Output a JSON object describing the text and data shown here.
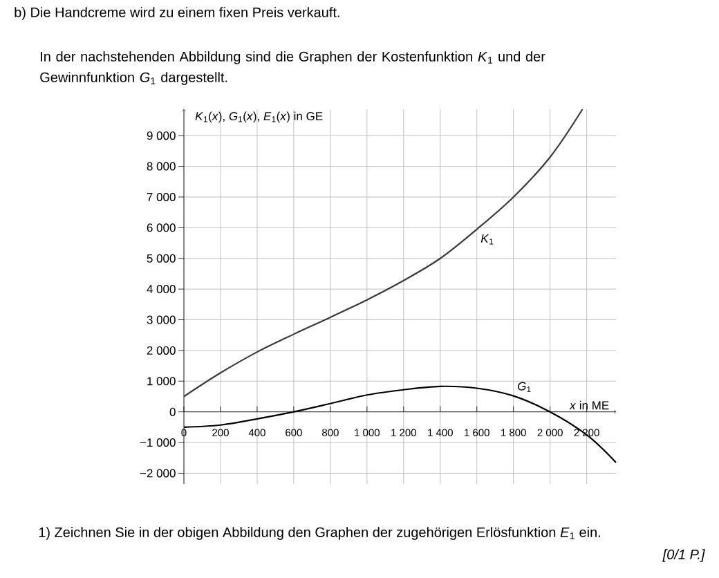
{
  "chart_data": {
    "type": "line",
    "title": "b)  Die Handcreme wird zu einem fixen Preis verkauft.",
    "subtitle": "In der nachstehenden Abbildung sind die Graphen der Kostenfunktion *K*$_{1}$ und der Gewinnfunktion *G*$_{1}$ dargestellt.",
    "xlabel": "*x* in ME",
    "ylabel": "*K*$_{1}$(*x*), *G*$_{1}$(*x*), *E*$_{1}$(*x*) in GE",
    "annotations": [
      "1)  Zeichnen Sie in der obigen Abbildung den Graphen der zugehörigen Erlösfunktion *E*$_{1}$ ein.",
      "*[0/1 P.]*"
    ],
    "series": [
      {
        "name": "*K*$_{1}$",
        "color": "#3a3a3a",
        "x": [
          0,
          200,
          400,
          600,
          800,
          1000,
          1200,
          1400,
          1600,
          1800,
          2000,
          2177
        ],
        "values": [
          500,
          1270,
          1950,
          2530,
          3080,
          3650,
          4280,
          5000,
          5950,
          7000,
          8300,
          9860
        ]
      },
      {
        "name": "*G*$_{1}$",
        "color": "#000000",
        "x": [
          0,
          200,
          400,
          600,
          800,
          1000,
          1200,
          1400,
          1600,
          1800,
          2000,
          2200,
          2360
        ],
        "values": [
          -500,
          -430,
          -230,
          0,
          270,
          550,
          720,
          830,
          770,
          520,
          0,
          -750,
          -1650
        ]
      }
    ],
    "xlim": [
      0,
      2360
    ],
    "ylim": [
      -2350,
      9860
    ],
    "xticks": [
      0,
      200,
      400,
      600,
      800,
      {
        "value": 1000,
        "label": "1 000"
      },
      {
        "value": 1200,
        "label": "1 200"
      },
      {
        "value": 1400,
        "label": "1 400"
      },
      {
        "value": 1600,
        "label": "1 600"
      },
      {
        "value": 1800,
        "label": "1 800"
      },
      {
        "value": 2000,
        "label": "2 000"
      },
      {
        "value": 2200,
        "label": "2 200"
      }
    ],
    "yticks": [
      {
        "value": -2000,
        "label": "−2 000"
      },
      {
        "value": -1000,
        "label": "−1 000"
      },
      0,
      {
        "value": 1000,
        "label": "1 000"
      },
      {
        "value": 2000,
        "label": "2 000"
      },
      {
        "value": 3000,
        "label": "3 000"
      },
      {
        "value": 4000,
        "label": "4 000"
      },
      {
        "value": 5000,
        "label": "5 000"
      },
      {
        "value": 6000,
        "label": "6 000"
      },
      {
        "value": 7000,
        "label": "7 000"
      },
      {
        "value": 8000,
        "label": "8 000"
      },
      {
        "value": 9000,
        "label": "9 000"
      }
    ],
    "grid": true,
    "marker": "none",
    "line_style": "solid"
  }
}
